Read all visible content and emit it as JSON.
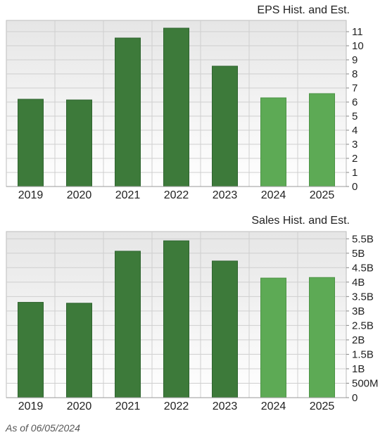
{
  "colors": {
    "historical": "#3d7a3a",
    "estimate": "#5daa55",
    "grid": "#cfcfcf",
    "plot_bg_top": "#e6e6e6",
    "plot_bg_bottom": "#ffffff"
  },
  "chart_data": [
    {
      "type": "bar",
      "title": "EPS Hist. and Est.",
      "categories": [
        "2019",
        "2020",
        "2021",
        "2022",
        "2023",
        "2024",
        "2025"
      ],
      "values": [
        6.2,
        6.15,
        10.55,
        11.25,
        8.55,
        6.3,
        6.6
      ],
      "estimate_flags": [
        false,
        false,
        false,
        false,
        false,
        true,
        true
      ],
      "ylim": [
        0,
        11.8
      ],
      "yticks": [
        0,
        1,
        2,
        3,
        4,
        5,
        6,
        7,
        8,
        9,
        10,
        11
      ],
      "ytick_labels": [
        "0",
        "1",
        "2",
        "3",
        "4",
        "5",
        "6",
        "7",
        "8",
        "9",
        "10",
        "11"
      ],
      "grid": true
    },
    {
      "type": "bar",
      "title": "Sales Hist. and Est.",
      "categories": [
        "2019",
        "2020",
        "2021",
        "2022",
        "2023",
        "2024",
        "2025"
      ],
      "values": [
        3300000000.0,
        3270000000.0,
        5070000000.0,
        5430000000.0,
        4730000000.0,
        4140000000.0,
        4160000000.0
      ],
      "estimate_flags": [
        false,
        false,
        false,
        false,
        false,
        true,
        true
      ],
      "ylim": [
        0,
        5750000000.0
      ],
      "yticks": [
        0,
        500000000.0,
        1000000000.0,
        1500000000.0,
        2000000000.0,
        2500000000.0,
        3000000000.0,
        3500000000.0,
        4000000000.0,
        4500000000.0,
        5000000000.0,
        5500000000.0
      ],
      "ytick_labels": [
        "0",
        "500M",
        "1B",
        "1.5B",
        "2B",
        "2.5B",
        "3B",
        "3.5B",
        "4B",
        "4.5B",
        "5B",
        "5.5B"
      ],
      "grid": true
    }
  ],
  "footer": {
    "as_of": "As of 06/05/2024"
  }
}
